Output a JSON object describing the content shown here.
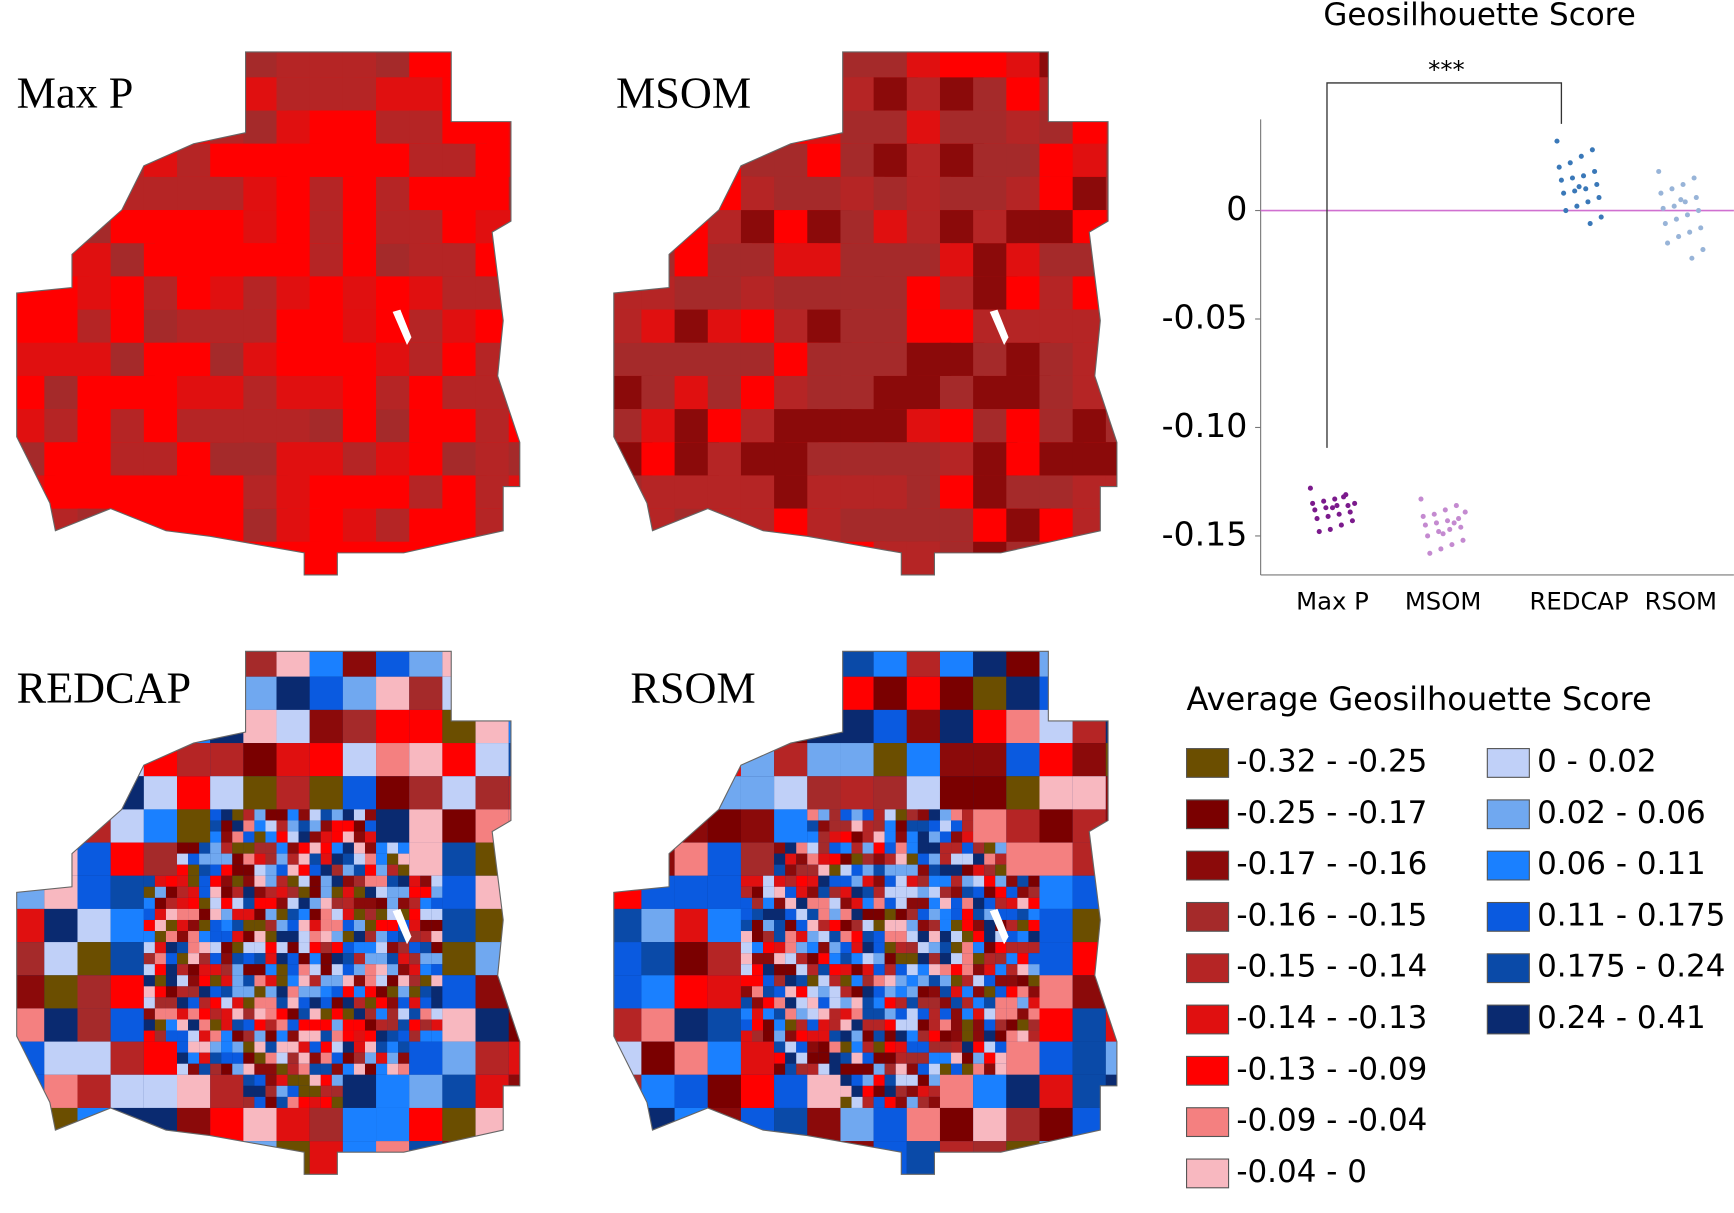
{
  "maps": [
    {
      "title": "Max P"
    },
    {
      "title": "MSOM"
    },
    {
      "title": "REDCAP"
    },
    {
      "title": "RSOM"
    }
  ],
  "chart_data": {
    "type": "strip",
    "title": "Geosilhouette Score",
    "categories": [
      "Max P",
      "MSOM",
      "REDCAP",
      "RSOM"
    ],
    "series": [
      {
        "color": "#7b1a8c",
        "values": [
          -0.128,
          -0.131,
          -0.133,
          -0.134,
          -0.135,
          -0.136,
          -0.136,
          -0.137,
          -0.138,
          -0.139,
          -0.14,
          -0.141,
          -0.142,
          -0.143,
          -0.145,
          -0.147,
          -0.148,
          -0.135,
          -0.132,
          -0.137
        ]
      },
      {
        "color": "#c48ad0",
        "values": [
          -0.133,
          -0.136,
          -0.138,
          -0.14,
          -0.141,
          -0.142,
          -0.143,
          -0.144,
          -0.145,
          -0.146,
          -0.147,
          -0.148,
          -0.15,
          -0.152,
          -0.154,
          -0.156,
          -0.158,
          -0.139,
          -0.144,
          -0.149
        ]
      },
      {
        "color": "#3a78b8",
        "values": [
          0.032,
          0.028,
          0.025,
          0.022,
          0.02,
          0.018,
          0.016,
          0.015,
          0.014,
          0.012,
          0.01,
          0.009,
          0.008,
          0.006,
          0.004,
          0.002,
          0.0,
          -0.003,
          -0.006,
          0.011
        ]
      },
      {
        "color": "#98b4d8",
        "values": [
          0.018,
          0.015,
          0.012,
          0.01,
          0.008,
          0.006,
          0.004,
          0.002,
          0.001,
          0.0,
          -0.002,
          -0.004,
          -0.006,
          -0.008,
          -0.01,
          -0.012,
          -0.015,
          -0.018,
          -0.022,
          0.005
        ]
      }
    ],
    "ylim": [
      -0.168,
      0.042
    ],
    "yticks": [
      0,
      -0.05,
      {
        "value": -0.1,
        "label": "-0.10"
      },
      -0.15
    ],
    "reference_line": 0,
    "reference_color": "#d070d0",
    "significance": {
      "label": "***",
      "from": 0,
      "to": 2
    }
  },
  "legend": {
    "title": "Average Geosilhouette Score",
    "items": [
      {
        "label": "-0.32 - -0.25",
        "color": "#6b4e00"
      },
      {
        "label": "-0.25 - -0.17",
        "color": "#7a0000"
      },
      {
        "label": "-0.17 - -0.16",
        "color": "#8b0a0a"
      },
      {
        "label": "-0.16 - -0.15",
        "color": "#a52a2a"
      },
      {
        "label": "-0.15 - -0.14",
        "color": "#b52525"
      },
      {
        "label": "-0.14 - -0.13",
        "color": "#e01010"
      },
      {
        "label": "-0.13 - -0.09",
        "color": "#ff0000"
      },
      {
        "label": "-0.09 - -0.04",
        "color": "#f48080"
      },
      {
        "label": "-0.04 - 0",
        "color": "#f8b8c0"
      },
      {
        "label": "0 - 0.02",
        "color": "#c0d0f8"
      },
      {
        "label": "0.02 - 0.06",
        "color": "#70a8f0"
      },
      {
        "label": "0.06 - 0.11",
        "color": "#1a80ff"
      },
      {
        "label": "0.11 - 0.175",
        "color": "#0a5ae0"
      },
      {
        "label": "0.175 - 0.24",
        "color": "#0a4aa8"
      },
      {
        "label": "0.24 - 0.41",
        "color": "#0a2a70"
      }
    ]
  }
}
